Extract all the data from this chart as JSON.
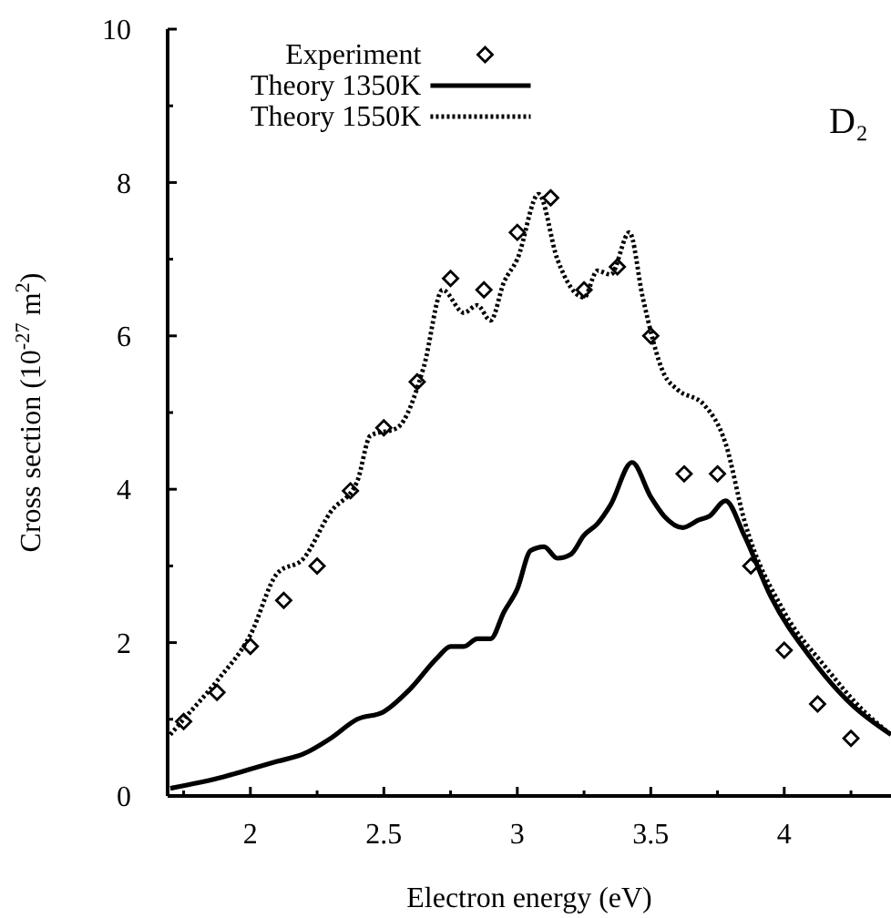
{
  "chart_data": {
    "type": "line",
    "xlabel": "Electron energy (eV)",
    "ylabel": "Cross section (10$^{-27}$ m$^{2}$)",
    "annotations": [
      "D₂"
    ],
    "xlim": [
      1.69,
      4.4
    ],
    "xticks": [
      {
        "value": 1.75,
        "label": null
      },
      2,
      {
        "value": 2.25,
        "label": null
      },
      2.5,
      {
        "value": 2.75,
        "label": null
      },
      3,
      {
        "value": 3.25,
        "label": null
      },
      3.5,
      {
        "value": 3.75,
        "label": null
      },
      4,
      {
        "value": 4.25,
        "label": null
      }
    ],
    "ylim": [
      0,
      10
    ],
    "yticks": [
      0,
      {
        "value": 1,
        "label": null
      },
      2,
      {
        "value": 3,
        "label": null
      },
      4,
      {
        "value": 5,
        "label": null
      },
      6,
      {
        "value": 7,
        "label": null
      },
      8,
      {
        "value": 9,
        "label": null
      },
      10
    ],
    "grid": false,
    "legend": "top",
    "series": [
      {
        "name": "Experiment",
        "type": "scatter",
        "marker": "diamond",
        "color": "#000000",
        "x": [
          1.75,
          1.875,
          2.0,
          2.125,
          2.25,
          2.375,
          2.5,
          2.625,
          2.75,
          2.875,
          3.0,
          3.125,
          3.25,
          3.375,
          3.5,
          3.625,
          3.75,
          3.875,
          4.0,
          4.125,
          4.25
        ],
        "values": [
          0.97,
          1.35,
          1.95,
          2.55,
          3.0,
          3.98,
          4.8,
          5.4,
          6.75,
          6.6,
          7.35,
          7.8,
          6.6,
          6.9,
          6.0,
          4.2,
          4.2,
          3.0,
          1.9,
          1.2,
          0.75
        ]
      },
      {
        "name": "Theory 1350K",
        "line_style": "solid",
        "color": "#000000",
        "x": [
          1.7,
          1.9,
          2.0,
          2.1,
          2.2,
          2.3,
          2.4,
          2.5,
          2.6,
          2.7,
          2.75,
          2.8,
          2.85,
          2.9,
          2.95,
          3.0,
          3.05,
          3.1,
          3.15,
          3.2,
          3.25,
          3.3,
          3.35,
          3.43,
          3.5,
          3.55,
          3.62,
          3.68,
          3.72,
          3.78,
          3.85,
          3.95,
          4.1,
          4.25,
          4.4
        ],
        "values": [
          0.1,
          0.25,
          0.35,
          0.45,
          0.55,
          0.75,
          1.0,
          1.1,
          1.4,
          1.8,
          1.95,
          1.95,
          2.05,
          2.05,
          2.4,
          2.7,
          3.2,
          3.25,
          3.1,
          3.15,
          3.4,
          3.55,
          3.8,
          4.35,
          3.9,
          3.65,
          3.5,
          3.6,
          3.65,
          3.85,
          3.4,
          2.6,
          1.8,
          1.2,
          0.8
        ]
      },
      {
        "name": "Theory 1550K",
        "line_style": "dotted",
        "color": "#000000",
        "x": [
          1.7,
          1.75,
          1.875,
          2.0,
          2.1,
          2.2,
          2.3,
          2.4,
          2.45,
          2.55,
          2.65,
          2.72,
          2.8,
          2.85,
          2.9,
          2.95,
          3.0,
          3.08,
          3.15,
          3.25,
          3.3,
          3.35,
          3.42,
          3.47,
          3.55,
          3.6,
          3.7,
          3.78,
          3.85,
          4.0,
          4.15,
          4.3,
          4.4
        ],
        "values": [
          0.8,
          1.0,
          1.5,
          2.1,
          2.9,
          3.1,
          3.7,
          4.1,
          4.7,
          4.8,
          5.6,
          6.6,
          6.3,
          6.4,
          6.2,
          6.7,
          7.0,
          7.85,
          7.0,
          6.5,
          6.85,
          6.8,
          7.35,
          6.5,
          5.5,
          5.3,
          5.1,
          4.6,
          3.6,
          2.4,
          1.7,
          1.1,
          0.8
        ]
      }
    ]
  }
}
